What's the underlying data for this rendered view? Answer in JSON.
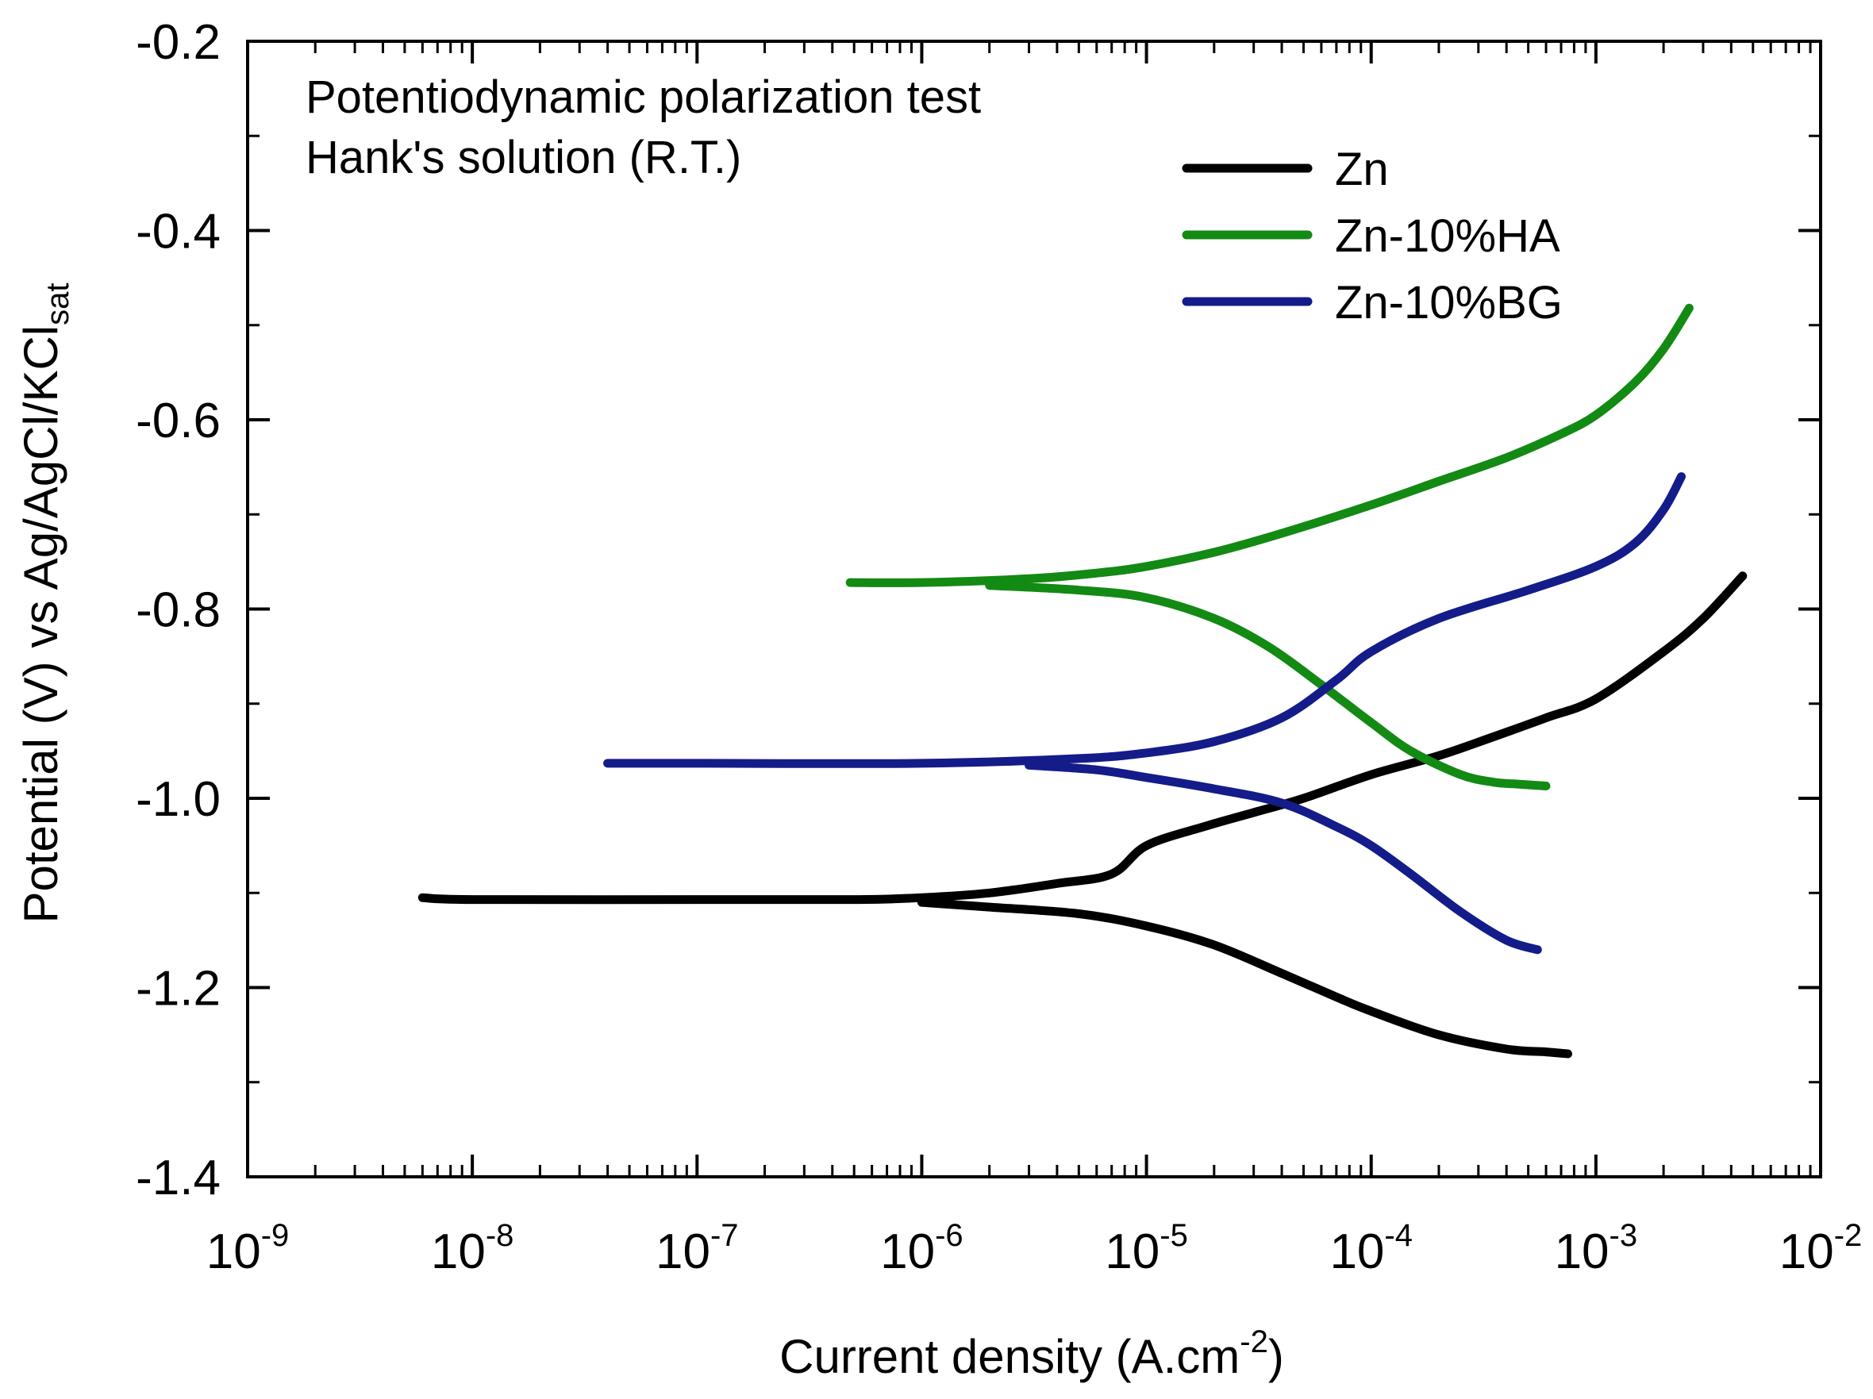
{
  "chart_data": {
    "type": "line",
    "title": "",
    "annotations": [
      "Potentiodynamic polarization test",
      "Hank's solution (R.T.)"
    ],
    "xlabel": {
      "text": "Current density (A.cm",
      "sup": "-2",
      "close": ")"
    },
    "ylabel": {
      "text": "Potential (V) vs Ag/AgCl/KCl",
      "sub": "sat"
    },
    "x_scale": "log",
    "xlim": [
      1e-09,
      0.01
    ],
    "ylim": [
      -1.4,
      -0.2
    ],
    "x_ticks": [
      {
        "base": "10",
        "exp": "-9",
        "value": 1e-09
      },
      {
        "base": "10",
        "exp": "-8",
        "value": 1e-08
      },
      {
        "base": "10",
        "exp": "-7",
        "value": 1e-07
      },
      {
        "base": "10",
        "exp": "-6",
        "value": 1e-06
      },
      {
        "base": "10",
        "exp": "-5",
        "value": 1e-05
      },
      {
        "base": "10",
        "exp": "-4",
        "value": 0.0001
      },
      {
        "base": "10",
        "exp": "-3",
        "value": 0.001
      },
      {
        "base": "10",
        "exp": "-2",
        "value": 0.01
      }
    ],
    "y_ticks": [
      {
        "label": "-0.2",
        "value": -0.2
      },
      {
        "label": "-0.4",
        "value": -0.4
      },
      {
        "label": "-0.6",
        "value": -0.6
      },
      {
        "label": "-0.8",
        "value": -0.8
      },
      {
        "label": "-1.0",
        "value": -1.0
      },
      {
        "label": "-1.2",
        "value": -1.2
      },
      {
        "label": "-1.4",
        "value": -1.4
      }
    ],
    "grid": false,
    "legend_position": "top-right",
    "series": [
      {
        "name": "Zn",
        "color": "#000000",
        "branches": [
          {
            "x": [
              6e-09,
              1e-08,
              1e-07,
              5e-07,
              1e-06,
              2e-06,
              4e-06,
              7e-06,
              1e-05,
              1.8e-05,
              3e-05,
              5e-05,
              0.0001,
              0.0002,
              0.00035,
              0.0006,
              0.001,
              0.002,
              0.003,
              0.0045
            ],
            "y": [
              -1.105,
              -1.107,
              -1.107,
              -1.107,
              -1.105,
              -1.1,
              -1.09,
              -1.08,
              -1.05,
              -1.03,
              -1.015,
              -1.0,
              -0.975,
              -0.955,
              -0.935,
              -0.915,
              -0.895,
              -0.845,
              -0.81,
              -0.765
            ]
          },
          {
            "x": [
              1e-06,
              2e-06,
              5e-06,
              1e-05,
              2e-05,
              4e-05,
              7e-05,
              0.0001,
              0.0002,
              0.0004,
              0.0006,
              0.00075
            ],
            "y": [
              -1.11,
              -1.115,
              -1.122,
              -1.135,
              -1.155,
              -1.185,
              -1.21,
              -1.225,
              -1.25,
              -1.265,
              -1.268,
              -1.27
            ]
          }
        ]
      },
      {
        "name": "Zn-10%HA",
        "color": "#138a13",
        "branches": [
          {
            "x": [
              4.8e-07,
              1e-06,
              3e-06,
              6e-06,
              1e-05,
              2e-05,
              4e-05,
              0.0001,
              0.0002,
              0.0004,
              0.0007,
              0.001,
              0.0015,
              0.002,
              0.0026
            ],
            "y": [
              -0.772,
              -0.772,
              -0.768,
              -0.762,
              -0.755,
              -0.74,
              -0.72,
              -0.69,
              -0.665,
              -0.64,
              -0.615,
              -0.595,
              -0.56,
              -0.525,
              -0.482
            ]
          },
          {
            "x": [
              2e-06,
              5e-06,
              1e-05,
              2e-05,
              3.5e-05,
              6e-05,
              0.0001,
              0.00015,
              0.00025,
              0.00035,
              0.00045,
              0.0006
            ],
            "y": [
              -0.775,
              -0.78,
              -0.788,
              -0.81,
              -0.84,
              -0.88,
              -0.92,
              -0.95,
              -0.975,
              -0.983,
              -0.985,
              -0.987
            ]
          }
        ]
      },
      {
        "name": "Zn-10%BG",
        "color": "#141c8a",
        "branches": [
          {
            "x": [
              4e-08,
              1e-07,
              1e-06,
              5e-06,
              1e-05,
              2e-05,
              4e-05,
              7e-05,
              0.0001,
              0.0002,
              0.0005,
              0.001,
              0.0015,
              0.002,
              0.0024
            ],
            "y": [
              -0.963,
              -0.963,
              -0.963,
              -0.958,
              -0.952,
              -0.94,
              -0.915,
              -0.875,
              -0.845,
              -0.81,
              -0.78,
              -0.755,
              -0.73,
              -0.695,
              -0.66
            ]
          },
          {
            "x": [
              3e-06,
              6e-06,
              1e-05,
              2e-05,
              4e-05,
              7e-05,
              0.0001,
              0.00015,
              0.00025,
              0.0004,
              0.00055
            ],
            "y": [
              -0.965,
              -0.97,
              -0.978,
              -0.99,
              -1.005,
              -1.03,
              -1.05,
              -1.08,
              -1.12,
              -1.15,
              -1.16
            ]
          }
        ]
      }
    ]
  }
}
